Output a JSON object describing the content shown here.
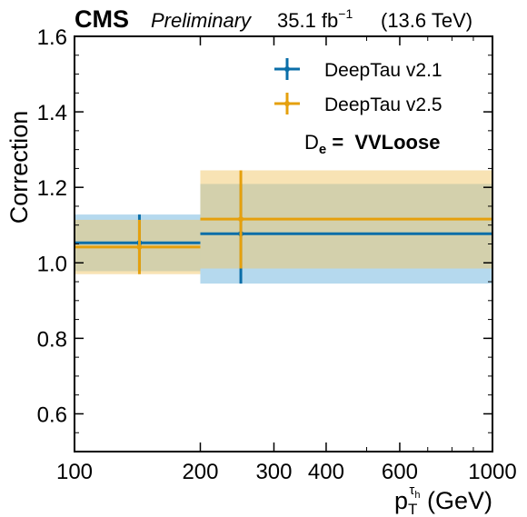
{
  "header": {
    "experiment": "CMS",
    "status": "Preliminary",
    "lumi_value": "35.1 fb",
    "lumi_exp": "−1",
    "energy": "(13.6 TeV)"
  },
  "annotation": {
    "label": "D",
    "label_sub": "e",
    "eq": " = ",
    "value": "VVLoose"
  },
  "chart_data": {
    "type": "scatter",
    "title": "",
    "xlabel": "p",
    "xlabel_sub": "T",
    "xlabel_sup": "τ",
    "xlabel_supsub": "h",
    "xlabel_unit": " (GeV)",
    "ylabel": "Correction",
    "xscale": "log",
    "xlim": [
      100,
      1000
    ],
    "ylim": [
      0.5,
      1.6
    ],
    "x_ticks": [
      100,
      200,
      300,
      400,
      600,
      1000
    ],
    "x_tick_labels": [
      "100",
      "200",
      "300",
      "400",
      "600",
      "1000"
    ],
    "y_ticks": [
      0.6,
      0.8,
      1.0,
      1.2,
      1.4,
      1.6
    ],
    "y_tick_labels": [
      "0.6",
      "0.8",
      "1.0",
      "1.2",
      "1.4",
      "1.6"
    ],
    "grid": false,
    "legend_position": "top-right",
    "series": [
      {
        "name": "DeepTau v2.1",
        "color": "#0a6ea8",
        "band_color": "#6cb3de",
        "bins": [
          {
            "xlow": 100,
            "xhigh": 200,
            "x": 143,
            "y": 1.053,
            "band_low": 0.978,
            "band_high": 1.128,
            "err_low": 0.978,
            "err_high": 1.128
          },
          {
            "xlow": 200,
            "xhigh": 1000,
            "x": 250,
            "y": 1.077,
            "band_low": 0.945,
            "band_high": 1.209,
            "err_low": 0.945,
            "err_high": 1.209
          }
        ]
      },
      {
        "name": "DeepTau v2.5",
        "color": "#e5a00d",
        "band_color": "#f2c86a",
        "bins": [
          {
            "xlow": 100,
            "xhigh": 200,
            "x": 143,
            "y": 1.042,
            "band_low": 0.97,
            "band_high": 1.114,
            "err_low": 0.97,
            "err_high": 1.114
          },
          {
            "xlow": 200,
            "xhigh": 1000,
            "x": 250,
            "y": 1.116,
            "band_low": 0.985,
            "band_high": 1.245,
            "err_low": 0.985,
            "err_high": 1.245
          }
        ]
      }
    ]
  }
}
